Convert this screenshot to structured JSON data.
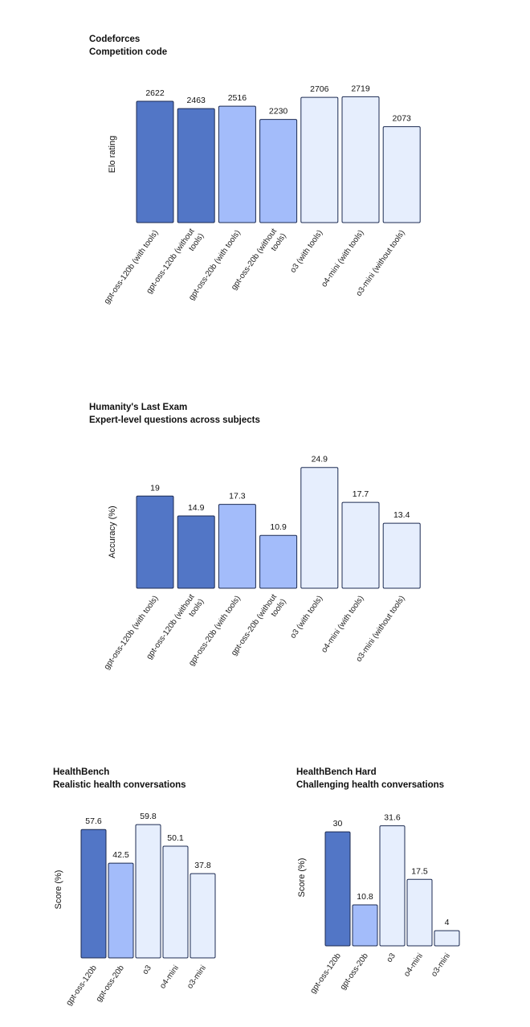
{
  "colors": {
    "gpt_oss_120b": "#5276c6",
    "gpt_oss_20b": "#a3bcfa",
    "openai_models": "#e6eefd",
    "stroke": "#1c2b52"
  },
  "chart_data": [
    {
      "type": "bar",
      "title": "Codeforces",
      "subtitle": "Competition code",
      "xlabel": "",
      "ylabel": "Elo rating",
      "categories": [
        "gpt-oss-120b (with tools)",
        "gpt-oss-120b (without tools)",
        "gpt-oss-20b (with tools)",
        "gpt-oss-20b (without tools)",
        "o3 (with tools)",
        "o4-mini (with tools)",
        "o3-mini (without tools)"
      ],
      "values": [
        2622,
        2463,
        2516,
        2230,
        2706,
        2719,
        2073
      ],
      "value_labels": [
        "2622",
        "2463",
        "2516",
        "2230",
        "2706",
        "2719",
        "2073"
      ],
      "color_keys": [
        "gpt_oss_120b",
        "gpt_oss_120b",
        "gpt_oss_20b",
        "gpt_oss_20b",
        "openai_models",
        "openai_models",
        "openai_models"
      ],
      "ylim": [
        0,
        2900
      ]
    },
    {
      "type": "bar",
      "title": "Humanity's Last Exam",
      "subtitle": "Expert-level questions across subjects",
      "xlabel": "",
      "ylabel": "Accuracy (%)",
      "categories": [
        "gpt-oss-120b (with tools)",
        "gpt-oss-120b (without tools)",
        "gpt-oss-20b (with tools)",
        "gpt-oss-20b (without tools)",
        "o3 (with tools)",
        "o4-mini (with tools)",
        "o3-mini (without tools)"
      ],
      "values": [
        19,
        14.9,
        17.3,
        10.9,
        24.9,
        17.7,
        13.4
      ],
      "value_labels": [
        "19",
        "14.9",
        "17.3",
        "10.9",
        "24.9",
        "17.7",
        "13.4"
      ],
      "color_keys": [
        "gpt_oss_120b",
        "gpt_oss_120b",
        "gpt_oss_20b",
        "gpt_oss_20b",
        "openai_models",
        "openai_models",
        "openai_models"
      ],
      "ylim": [
        0,
        27.5
      ]
    },
    {
      "type": "bar",
      "title": "HealthBench",
      "subtitle": "Realistic health conversations",
      "xlabel": "",
      "ylabel": "Score (%)",
      "categories": [
        "gpt-oss-120b",
        "gpt-oss-20b",
        "o3",
        "o4-mini",
        "o3-mini"
      ],
      "values": [
        57.6,
        42.5,
        59.8,
        50.1,
        37.8
      ],
      "value_labels": [
        "57.6",
        "42.5",
        "59.8",
        "50.1",
        "37.8"
      ],
      "color_keys": [
        "gpt_oss_120b",
        "gpt_oss_20b",
        "openai_models",
        "openai_models",
        "openai_models"
      ],
      "ylim": [
        0,
        62
      ]
    },
    {
      "type": "bar",
      "title": "HealthBench Hard",
      "subtitle": "Challenging health conversations",
      "xlabel": "",
      "ylabel": "Score (%)",
      "categories": [
        "gpt-oss-120b",
        "gpt-oss-20b",
        "o3",
        "o4-mini",
        "o3-mini"
      ],
      "values": [
        30,
        10.8,
        31.6,
        17.5,
        4
      ],
      "value_labels": [
        "30",
        "10.8",
        "31.6",
        "17.5",
        "4"
      ],
      "color_keys": [
        "gpt_oss_120b",
        "gpt_oss_20b",
        "openai_models",
        "openai_models",
        "openai_models"
      ],
      "ylim": [
        0,
        33
      ]
    }
  ]
}
